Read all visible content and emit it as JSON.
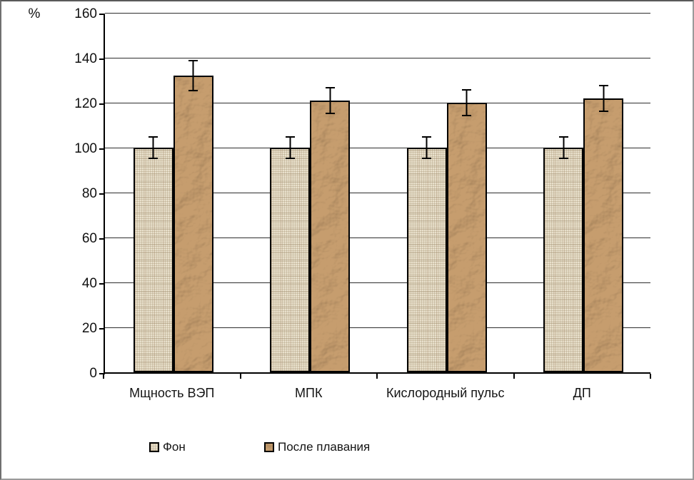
{
  "frame": {
    "border_color": "#9a9a9a",
    "background": "#ffffff"
  },
  "chart_data": {
    "type": "bar",
    "title": "",
    "xlabel": "",
    "ylabel": "%",
    "ylim": [
      0,
      160
    ],
    "yticks": [
      0,
      20,
      40,
      60,
      80,
      100,
      120,
      140,
      160
    ],
    "grid": true,
    "legend_position": "bottom",
    "categories": [
      "Мщность ВЭП",
      "МПК",
      "Кислородный пульс",
      "ДП"
    ],
    "series": [
      {
        "name": "Фон",
        "values": [
          100,
          100,
          100,
          100
        ],
        "errors": [
          5,
          5,
          5,
          5
        ],
        "fill": "#e9e1cd",
        "texture": "canvas"
      },
      {
        "name": "После плавания",
        "values": [
          132,
          121,
          120,
          122
        ],
        "errors": [
          7,
          6,
          6,
          6
        ],
        "fill": "#c69d6e",
        "texture": "crumpled-paper"
      }
    ],
    "error_bar_color": "#000000",
    "bar_border_color": "#000000",
    "gridline_color": "#2e2e2e"
  }
}
